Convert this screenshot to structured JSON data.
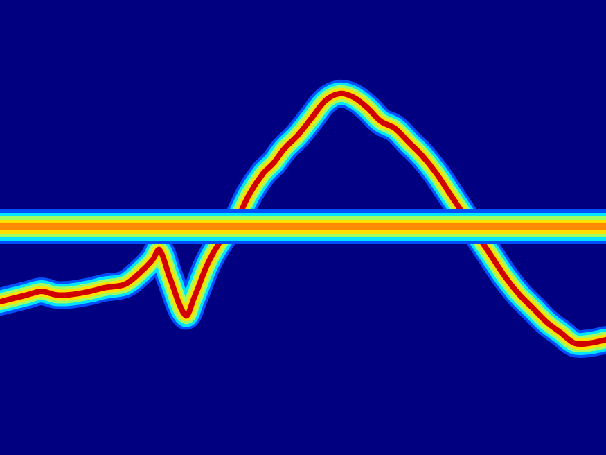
{
  "chart_data": {
    "type": "line",
    "x": [
      0,
      20,
      40,
      60,
      80,
      100,
      130,
      150,
      180,
      200,
      220,
      230,
      245,
      268,
      280,
      300,
      320,
      340,
      360,
      380,
      395,
      410,
      430,
      450,
      470,
      490,
      510,
      530,
      550,
      570,
      590,
      610,
      630,
      650,
      670,
      690,
      710,
      730,
      750,
      770,
      790,
      810,
      830,
      850,
      875
    ],
    "series": [
      {
        "color": "#ff8c00",
        "values": [
          329,
          329,
          329,
          329,
          329,
          329,
          329,
          329,
          329,
          329,
          329,
          329,
          329,
          329,
          329,
          329,
          329,
          329,
          329,
          329,
          329,
          329,
          329,
          329,
          329,
          329,
          329,
          329,
          329,
          329,
          329,
          329,
          329,
          329,
          329,
          329,
          329,
          329,
          329,
          329,
          329,
          329,
          329,
          329,
          329
        ]
      },
      {
        "color": "#d00000",
        "values": [
          221,
          226,
          231,
          236,
          231,
          231,
          236,
          241,
          246,
          261,
          281,
          296,
          256,
          201,
          226,
          276,
          311,
          336,
          376,
          406,
          421,
          441,
          461,
          486,
          511,
          521,
          516,
          501,
          481,
          471,
          451,
          431,
          406,
          376,
          346,
          316,
          286,
          256,
          231,
          211,
          191,
          176,
          161,
          161,
          166
        ]
      }
    ],
    "xlim": [
      0,
      875
    ],
    "ylim": [
      0,
      656
    ],
    "grid": false,
    "tick_labels": false
  }
}
